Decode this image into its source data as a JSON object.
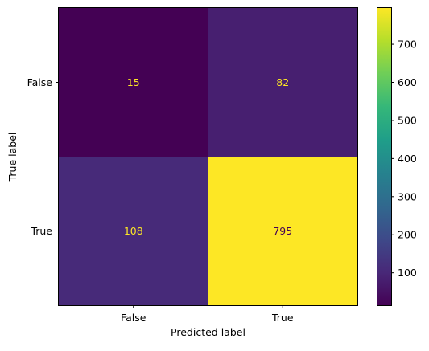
{
  "chart_data": {
    "type": "heatmap",
    "title": "",
    "xlabel": "Predicted label",
    "ylabel": "True label",
    "x_categories": [
      "False",
      "True"
    ],
    "y_categories": [
      "False",
      "True"
    ],
    "values": [
      [
        15,
        82
      ],
      [
        108,
        795
      ]
    ],
    "colormap": "viridis",
    "color_range": [
      15,
      795
    ],
    "colorbar_ticks": [
      100,
      200,
      300,
      400,
      500,
      600,
      700
    ],
    "text_colors": {
      "on_dark": "#fde725",
      "on_light": "#440154"
    },
    "grid": false
  },
  "colors": {
    "viridis_stops": [
      "#440154",
      "#482878",
      "#3e4989",
      "#31688e",
      "#26828e",
      "#1f9e89",
      "#35b779",
      "#6ece58",
      "#b5de2b",
      "#fde725"
    ],
    "axes": "#000000",
    "background": "#ffffff"
  }
}
